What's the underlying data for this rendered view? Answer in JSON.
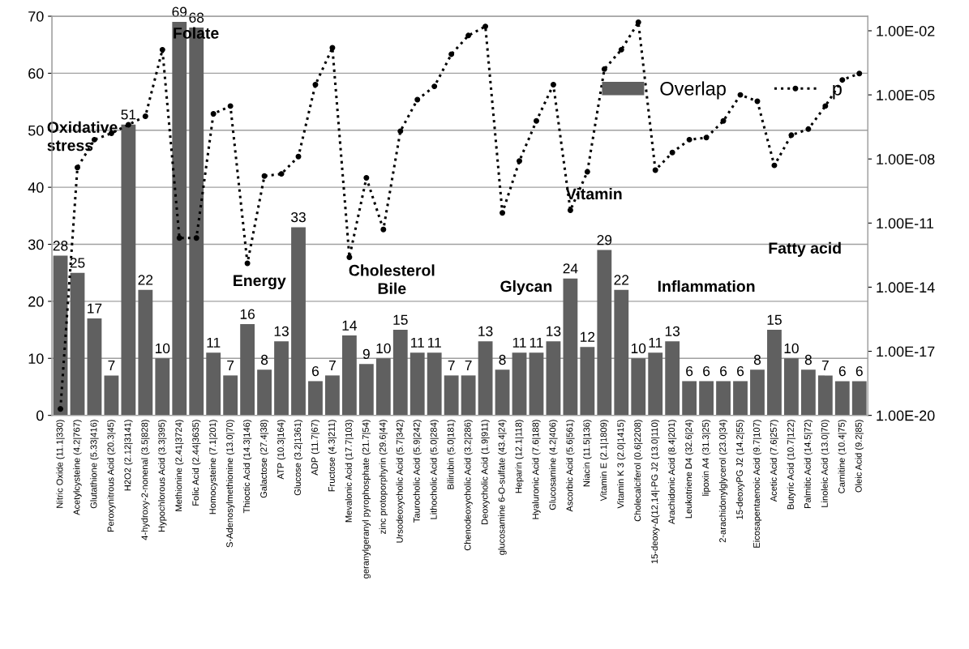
{
  "chart_data": {
    "type": "bar",
    "categories": [
      "Nitric Oxide (11.1|330)",
      "Acetylcysteine (4.2|767)",
      "Glutathione (5.33|416)",
      "Peroxynitrous Acid (20.3|45)",
      "H2O2 (2.12|3141)",
      "4-hydroxy-2-nonenal (3.5|828)",
      "Hypochlorous Acid (3.3|395)",
      "Methionine (2.41|3724)",
      "Folic Acid (2.44|3635)",
      "Homocysteine (7.1|201)",
      "S-Adenosylmethionine (13.0|70)",
      "Thioctic Acid (14.3|146)",
      "Galactose (27.4|38)",
      "ATP (10.3|164)",
      "Glucose (3.2|1361)",
      "ADP (11.7|67)",
      "Fructose (4.3|211)",
      "Mevalonic Acid (17.7|103)",
      "geranylgeranyl pyrophosphate (21.7|54)",
      "zinc protoporphyrin (29.6|44)",
      "Ursodeoxycholic Acid (5.7|342)",
      "Taurocholic Acid (5.9|242)",
      "Lithocholic Acid (5.0|284)",
      "Bilirubin (5.0|181)",
      "Chenodeoxycholic Acid (3.2|286)",
      "Deoxycholic Acid (1.9|911)",
      "glucosamine 6-O-sulfate (43.4|24)",
      "Heparin (12.1|118)",
      "Hyaluronic Acid (7.6|188)",
      "Glucosamine (4.2|406)",
      "Ascorbic Acid (5.6|561)",
      "Niacin (11.5|136)",
      "Vitamin E (2.1|1809)",
      "Vitamin K 3 (2.0|1415)",
      "Cholecalciferol (0.6|2208)",
      "15-deoxy-Δ(12,14|-PG J2 (13.0|110)",
      "Arachidonic Acid (8.4|201)",
      "Leukotriene D4 (32.6|24)",
      "lipoxin A4 (31.3|25)",
      "2-arachidonylglycerol (23.0|34)",
      "15-deoxyPG J2 (14.2|55)",
      "Eicosapentaenoic Acid (9.7|107)",
      "Acetic Acid (7.6|257)",
      "Butyric Acid (10.7|122)",
      "Palmitic Acid (14.5|72)",
      "Linoleic Acid (13.0|70)",
      "Carnitine (10.4|75)",
      "Oleic Acid (9.2|85)"
    ],
    "series": [
      {
        "name": "Overlap",
        "color": "#606060",
        "values": [
          28,
          25,
          17,
          7,
          51,
          22,
          10,
          69,
          68,
          11,
          7,
          16,
          8,
          13,
          33,
          6,
          7,
          14,
          9,
          10,
          15,
          11,
          11,
          7,
          7,
          13,
          8,
          11,
          11,
          13,
          24,
          12,
          29,
          22,
          10,
          11,
          13,
          6,
          6,
          6,
          6,
          8,
          15,
          10,
          8,
          7,
          6,
          6
        ],
        "value_labels": [
          "28",
          "25",
          "17",
          "7",
          "51",
          "22",
          "10",
          "69",
          "68",
          "11",
          "7",
          "16",
          "8",
          "13",
          "33",
          "6",
          "7",
          "14",
          "9",
          "10",
          "15",
          "11",
          "11",
          "7",
          "7",
          "13",
          "8",
          "11",
          "11",
          "13",
          "24",
          "12",
          "29",
          "22",
          "10",
          "11",
          "13",
          "6",
          "6",
          "6",
          "6",
          "8",
          "15",
          "10",
          "8",
          "7",
          "6",
          "6"
        ]
      },
      {
        "name": "p",
        "type": "line",
        "axis": "y2",
        "color": "#000000",
        "marker": "circle",
        "line_style": "dotted",
        "values": [
          2e-20,
          4e-09,
          8e-08,
          1.6e-07,
          4e-07,
          1e-06,
          0.0013,
          2e-12,
          2e-12,
          1.3e-06,
          3e-06,
          1.3e-13,
          1.6e-09,
          2e-09,
          1.3e-08,
          3e-05,
          0.0016,
          2.5e-13,
          1.3e-09,
          5e-12,
          2e-07,
          6e-06,
          2.5e-05,
          0.0008,
          0.006,
          0.016,
          3e-11,
          8e-09,
          6e-07,
          3e-05,
          4e-11,
          2.5e-09,
          0.00016,
          0.0013,
          0.025,
          3e-09,
          2e-08,
          8e-08,
          1e-07,
          6e-07,
          1e-05,
          5e-06,
          5e-09,
          1.3e-07,
          2.5e-07,
          3e-06,
          5e-05,
          0.0001
        ]
      }
    ],
    "ylim": [
      0,
      70
    ],
    "yticks": [
      0,
      10,
      20,
      30,
      40,
      50,
      60,
      70
    ],
    "log": "y2",
    "y2lim": [
      1e-20,
      0.048
    ],
    "y2ticks": [
      {
        "value": 1e-20,
        "label": "1.00E-20"
      },
      {
        "value": 1e-17,
        "label": "1.00E-17"
      },
      {
        "value": 1e-14,
        "label": "1.00E-14"
      },
      {
        "value": 1e-11,
        "label": "1.00E-11"
      },
      {
        "value": 1e-08,
        "label": "1.00E-08"
      },
      {
        "value": 1e-05,
        "label": "1.00E-05"
      },
      {
        "value": 0.01,
        "label": "1.00E-02"
      }
    ],
    "grid": "y",
    "legend": "top right",
    "annotations": [
      "Oxidative\nstress",
      "Folate",
      "Energy",
      "Cholesterol\nBile",
      "Glycan",
      "Vitamin",
      "Inflammation",
      "Fatty acid"
    ]
  }
}
